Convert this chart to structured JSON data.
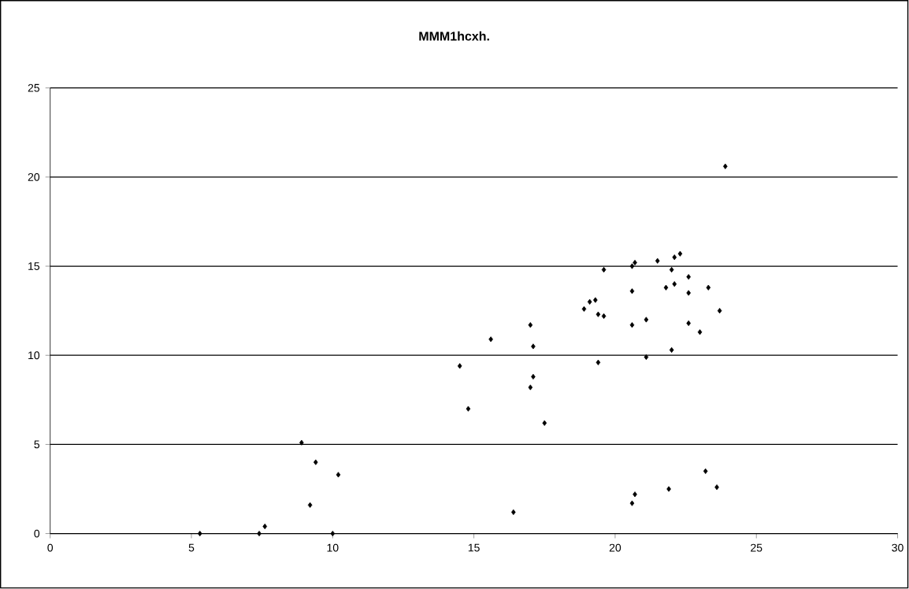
{
  "chart_data": {
    "type": "scatter",
    "title": "MMM1hcxh.",
    "x": [
      5.3,
      7.4,
      7.6,
      8.9,
      9.4,
      10.2,
      9.2,
      10.0,
      16.4,
      14.5,
      14.8,
      15.6,
      17.1,
      17.1,
      17.0,
      17.5,
      19.4,
      21.1,
      22.0,
      20.6,
      20.7,
      21.9,
      23.2,
      23.6,
      23.9,
      19.6,
      20.6,
      20.7,
      21.5,
      22.0,
      22.1,
      22.3,
      22.6,
      21.8,
      22.1,
      22.6,
      23.3,
      20.6,
      19.1,
      19.3,
      18.9,
      19.4,
      19.6,
      17.0,
      23.7,
      20.6,
      21.1,
      22.6,
      23.0
    ],
    "values": [
      0,
      0,
      0.4,
      5.1,
      4.0,
      3.3,
      1.6,
      0,
      1.2,
      9.4,
      7.0,
      10.9,
      10.5,
      8.8,
      8.2,
      6.2,
      9.6,
      9.9,
      10.3,
      1.7,
      2.2,
      2.5,
      3.5,
      2.6,
      20.6,
      14.8,
      15.0,
      15.2,
      15.3,
      14.8,
      15.5,
      15.7,
      14.4,
      13.8,
      14.0,
      13.5,
      13.8,
      13.6,
      13.0,
      13.1,
      12.6,
      12.3,
      12.2,
      11.7,
      12.5,
      11.7,
      12.0,
      11.8,
      11.3
    ],
    "color": "#000000",
    "marker": "diamond",
    "xlim": [
      0,
      30
    ],
    "xticks": [
      0,
      5,
      10,
      15,
      20,
      25,
      30
    ],
    "ylim": [
      0,
      25
    ],
    "yticks": [
      0,
      5,
      10,
      15,
      20,
      25
    ],
    "grid": "y"
  }
}
